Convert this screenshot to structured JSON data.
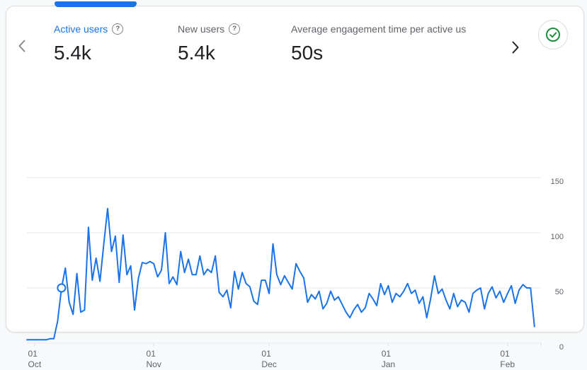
{
  "colors": {
    "accent_blue": "#1a73e8",
    "check_green": "#1e8e3e",
    "text_dark": "#202124",
    "text_gray": "#5f6368",
    "grid_gray": "#e8eaed",
    "border_gray": "#dadce0"
  },
  "header": {
    "metrics": [
      {
        "label": "Active users",
        "value": "5.4k",
        "active": true
      },
      {
        "label": "New users",
        "value": "5.4k",
        "active": false
      },
      {
        "label": "Average engagement time per active us",
        "value": "50s",
        "active": false
      }
    ],
    "help_glyph": "?"
  },
  "chart_data": {
    "type": "line",
    "series": [
      {
        "name": "Active users",
        "values": [
          3,
          3,
          3,
          3,
          3,
          3,
          4,
          4,
          20,
          50,
          68,
          37,
          26,
          63,
          28,
          30,
          105,
          57,
          77,
          56,
          90,
          122,
          83,
          97,
          55,
          98,
          62,
          70,
          30,
          59,
          73,
          72,
          74,
          72,
          60,
          66,
          100,
          54,
          60,
          53,
          83,
          64,
          76,
          62,
          62,
          79,
          62,
          67,
          64,
          79,
          46,
          42,
          48,
          32,
          65,
          49,
          64,
          54,
          51,
          38,
          35,
          57,
          57,
          45,
          90,
          62,
          53,
          61,
          55,
          49,
          72,
          65,
          59,
          37,
          44,
          40,
          47,
          31,
          36,
          47,
          39,
          42,
          35,
          28,
          23,
          30,
          35,
          28,
          32,
          45,
          40,
          34,
          54,
          44,
          52,
          37,
          45,
          42,
          47,
          54,
          45,
          48,
          36,
          42,
          23,
          40,
          61,
          45,
          49,
          39,
          31,
          45,
          33,
          39,
          37,
          28,
          45,
          48,
          50,
          31,
          45,
          51,
          41,
          47,
          37,
          45,
          52,
          36,
          48,
          53,
          50,
          50,
          15
        ]
      }
    ],
    "x_unit": "day",
    "x_ticks": [
      {
        "day": "01",
        "month": "Oct",
        "index": 2
      },
      {
        "day": "01",
        "month": "Nov",
        "index": 33
      },
      {
        "day": "01",
        "month": "Dec",
        "index": 63
      },
      {
        "day": "01",
        "month": "Jan",
        "index": 94
      },
      {
        "day": "01",
        "month": "Feb",
        "index": 125
      }
    ],
    "y_ticks": [
      0,
      50,
      100,
      150
    ],
    "ylim": [
      0,
      150
    ],
    "grid": true,
    "legend": "none",
    "highlight_point": {
      "index": 9,
      "value": 50
    },
    "line_color": "#1a73e8"
  }
}
